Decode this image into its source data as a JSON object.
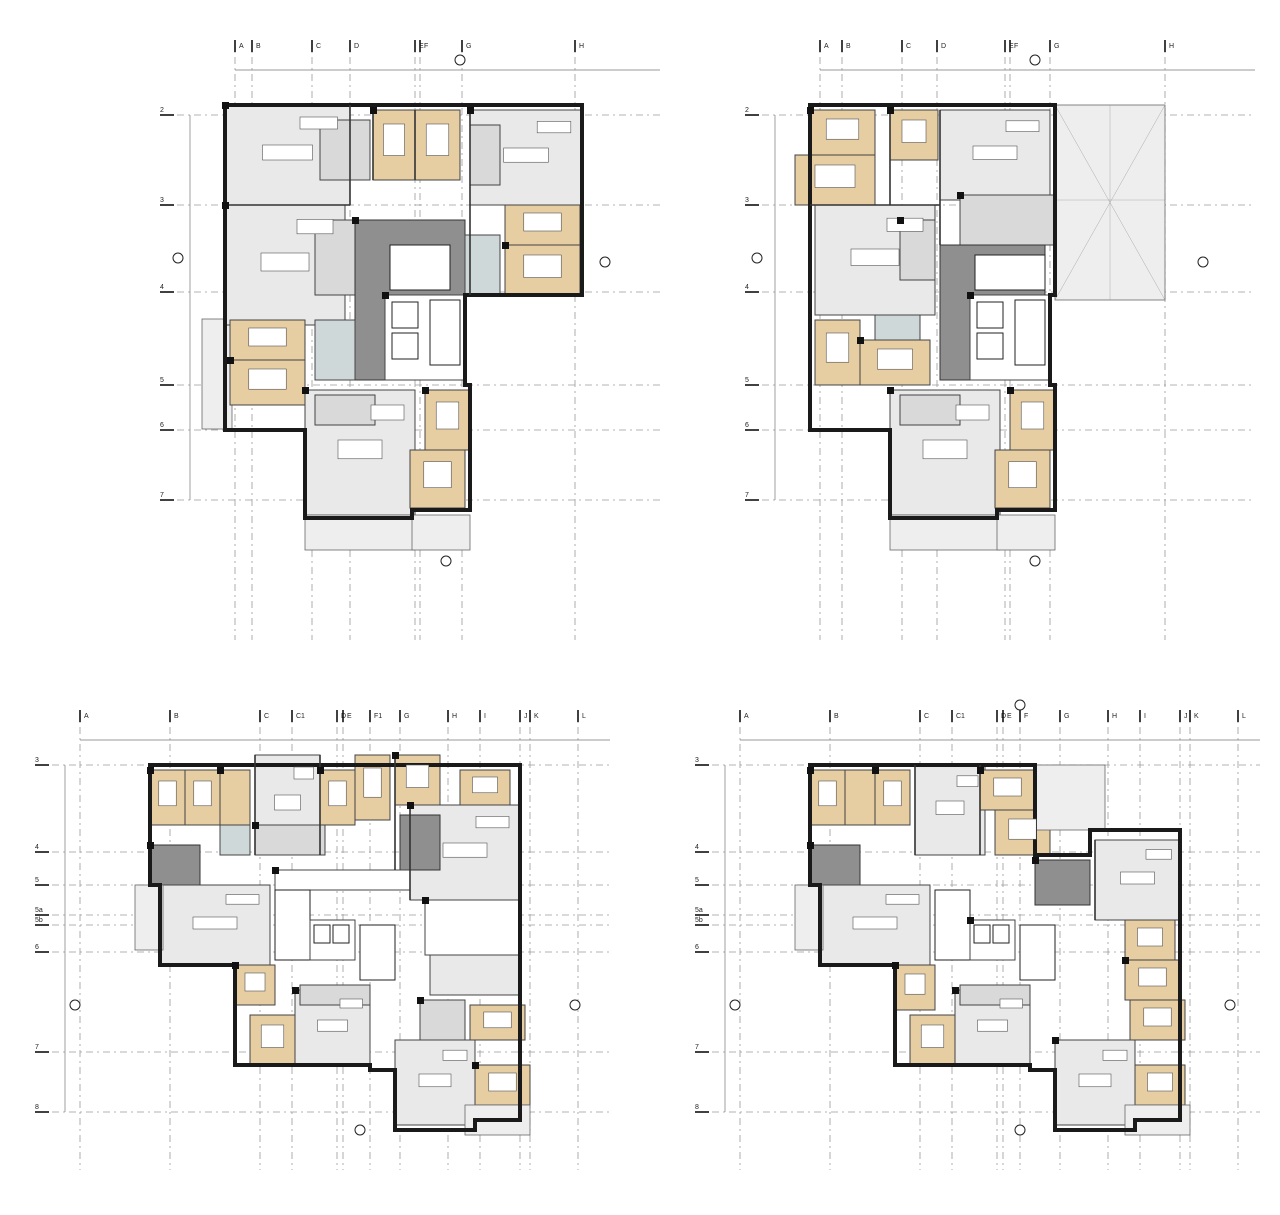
{
  "plans": [
    {
      "id": "plan-top-left",
      "cols": [
        "A",
        "B",
        "C",
        "D",
        "E",
        "F",
        "G",
        "H"
      ],
      "rows": [
        "2",
        "3",
        "4",
        "5",
        "6",
        "7"
      ]
    },
    {
      "id": "plan-top-right",
      "cols": [
        "A",
        "B",
        "C",
        "D",
        "E",
        "F",
        "G",
        "H"
      ],
      "rows": [
        "2",
        "3",
        "4",
        "5",
        "6",
        "7"
      ]
    },
    {
      "id": "plan-bottom-left",
      "cols": [
        "A",
        "B",
        "C",
        "C1",
        "D",
        "E",
        "F1",
        "G",
        "H",
        "I",
        "J",
        "K",
        "L"
      ],
      "rows": [
        "3",
        "4",
        "5",
        "5a",
        "5b",
        "6",
        "7",
        "8"
      ]
    },
    {
      "id": "plan-bottom-right",
      "cols": [
        "A",
        "B",
        "C",
        "C1",
        "D",
        "E",
        "F",
        "G",
        "H",
        "I",
        "J",
        "K",
        "L"
      ],
      "rows": [
        "3",
        "4",
        "5",
        "5a",
        "5b",
        "6",
        "7",
        "8"
      ]
    }
  ],
  "colors": {
    "bedroom": "#e6cda2",
    "living": "#d9d9d9",
    "core": "#8f8f8f",
    "wet": "#cfd8d8",
    "wall": "#1a1a1a"
  }
}
